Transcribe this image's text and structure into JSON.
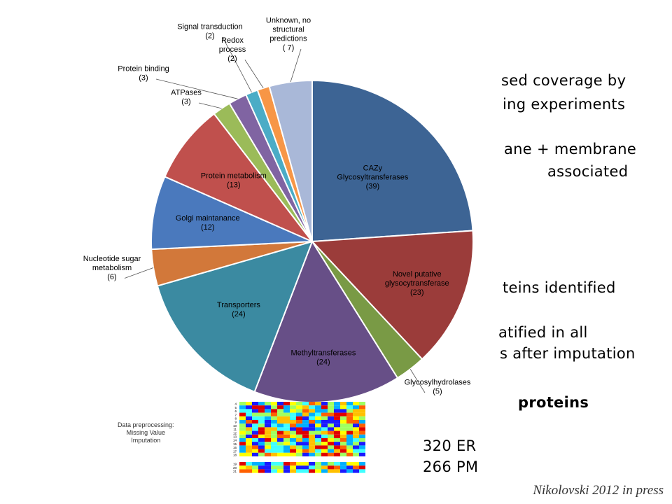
{
  "slide_text": {
    "line1": "sed coverage by",
    "line2": "ing experiments",
    "line3": "ane + membrane",
    "line4": "associated",
    "line5": "teins identified",
    "line6": "atified in all",
    "line7": "s after imputation",
    "line8": "proteins",
    "line9": "320 ER",
    "line10": "266 PM",
    "citation": "Nikolovski 2012 in press"
  },
  "heatmap_note": {
    "line1": "Data preprocessing:",
    "line2": "Missing Value",
    "line3": "Imputation"
  },
  "chart_data": {
    "type": "pie",
    "title": "",
    "start": "12 o'clock, clockwise",
    "slices": [
      {
        "label": "CAZy Glycosyltransferases",
        "lines": [
          "CAZy",
          "Glycosyltransferases",
          "(39)"
        ],
        "value": 39,
        "color": "#3d6494"
      },
      {
        "label": "Novel putative glysocytransferase",
        "lines": [
          "Novel putative",
          "glysocytransferase",
          "(23)"
        ],
        "value": 23,
        "color": "#9b3c3a"
      },
      {
        "label": "Glycosylhydrolases",
        "lines": [
          "Glycosylhydrolases",
          "(5)"
        ],
        "value": 5,
        "color": "#799a45"
      },
      {
        "label": "Methyltransferases",
        "lines": [
          "Methyltransferases",
          "(24)"
        ],
        "value": 24,
        "color": "#674f87"
      },
      {
        "label": "Transporters",
        "lines": [
          "Transporters",
          "(24)"
        ],
        "value": 24,
        "color": "#3b8aa1"
      },
      {
        "label": "Nucleotide sugar metabolism",
        "lines": [
          "Nucleotide sugar",
          "metabolism",
          "(6)"
        ],
        "value": 6,
        "color": "#d2783a"
      },
      {
        "label": "Golgi maintanance",
        "lines": [
          "Golgi maintanance",
          "(12)"
        ],
        "value": 12,
        "color": "#4a79bd"
      },
      {
        "label": "Protein metabolism",
        "lines": [
          "Protein metabolism",
          "(13)"
        ],
        "value": 13,
        "color": "#c0504d"
      },
      {
        "label": "ATPases",
        "lines": [
          "ATPases",
          "(3)"
        ],
        "value": 3,
        "color": "#9bbb59"
      },
      {
        "label": "Protein binding",
        "lines": [
          "Protein binding",
          "(3)"
        ],
        "value": 3,
        "color": "#8064a2"
      },
      {
        "label": "Signal transduction",
        "lines": [
          "Signal transduction",
          "(2)"
        ],
        "value": 2,
        "color": "#4bacc6"
      },
      {
        "label": "Redox process",
        "lines": [
          "Redox",
          "process",
          "(2)"
        ],
        "value": 2,
        "color": "#f79646"
      },
      {
        "label": "Unknown, no structural predictions",
        "lines": [
          "Unknown, no",
          "structural",
          "predictions",
          "( 7)"
        ],
        "value": 7,
        "color": "#a9b8d8"
      }
    ]
  },
  "heatmap_colors": [
    "#1a1aff",
    "#00b0ff",
    "#40ffff",
    "#a0ff60",
    "#ffff00",
    "#ffc000",
    "#ff6000",
    "#e00000"
  ],
  "heatmap_row_labels": [
    "4",
    "5",
    "6",
    "7",
    "8",
    "9",
    "10",
    "11",
    "12",
    "13",
    "14",
    "15",
    "16",
    "17",
    "18",
    "19",
    "20",
    "21"
  ]
}
